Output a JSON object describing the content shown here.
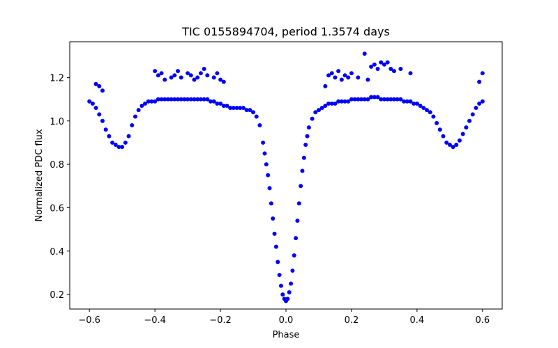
{
  "chart_data": {
    "type": "scatter",
    "title": "TIC 0155894704, period 1.3574 days",
    "xlabel": "Phase",
    "ylabel": "Normalized PDC flux",
    "xlim": [
      -0.66,
      0.66
    ],
    "ylim": [
      0.133,
      1.365
    ],
    "x_ticks": [
      -0.6,
      -0.4,
      -0.2,
      0.0,
      0.2,
      0.4,
      0.6
    ],
    "x_tick_labels": [
      "−0.6",
      "−0.4",
      "−0.2",
      "0.0",
      "0.2",
      "0.4",
      "0.6"
    ],
    "y_ticks": [
      0.2,
      0.4,
      0.6,
      0.8,
      1.0,
      1.2
    ],
    "y_tick_labels": [
      "0.2",
      "0.4",
      "0.6",
      "0.8",
      "1.0",
      "1.2"
    ],
    "grid": false,
    "marker_color": "#0000ff",
    "series": [
      {
        "x": [
          -0.6,
          -0.59,
          -0.58,
          -0.57,
          -0.56,
          -0.55,
          -0.54,
          -0.53,
          -0.52,
          -0.51,
          -0.5,
          -0.49,
          -0.48,
          -0.47,
          -0.46,
          -0.45,
          -0.44,
          -0.43,
          -0.42,
          -0.41,
          -0.4,
          -0.39,
          -0.38,
          -0.37,
          -0.36,
          -0.35,
          -0.34,
          -0.33,
          -0.32,
          -0.31,
          -0.3,
          -0.29,
          -0.28,
          -0.27,
          -0.26,
          -0.25,
          -0.24,
          -0.23,
          -0.22,
          -0.21,
          -0.2,
          -0.19,
          -0.18,
          -0.17,
          -0.16,
          -0.15,
          -0.14,
          -0.13,
          -0.12,
          -0.11,
          -0.1,
          -0.09,
          -0.08,
          -0.07,
          -0.065,
          -0.06,
          -0.055,
          -0.05,
          -0.045,
          -0.04,
          -0.035,
          -0.03,
          -0.025,
          -0.02,
          -0.015,
          -0.01,
          -0.005,
          0.0,
          0.005,
          0.01,
          0.015,
          0.02,
          0.025,
          0.03,
          0.035,
          0.04,
          0.045,
          0.05,
          0.055,
          0.06,
          0.065,
          0.07,
          0.08,
          0.09,
          0.1,
          0.11,
          0.12,
          0.13,
          0.14,
          0.15,
          0.16,
          0.17,
          0.18,
          0.19,
          0.2,
          0.21,
          0.22,
          0.23,
          0.24,
          0.25,
          0.26,
          0.27,
          0.28,
          0.29,
          0.3,
          0.31,
          0.32,
          0.33,
          0.34,
          0.35,
          0.36,
          0.37,
          0.38,
          0.39,
          0.4,
          0.41,
          0.42,
          0.43,
          0.44,
          0.45,
          0.46,
          0.47,
          0.48,
          0.49,
          0.5,
          0.51,
          0.52,
          0.53,
          0.54,
          0.55,
          0.56,
          0.57,
          0.58,
          0.59,
          0.6
        ],
        "y": [
          1.09,
          1.08,
          1.06,
          1.03,
          1.0,
          0.96,
          0.93,
          0.9,
          0.89,
          0.88,
          0.88,
          0.9,
          0.93,
          0.98,
          1.02,
          1.05,
          1.07,
          1.08,
          1.09,
          1.09,
          1.09,
          1.1,
          1.1,
          1.1,
          1.1,
          1.1,
          1.1,
          1.1,
          1.1,
          1.1,
          1.1,
          1.1,
          1.1,
          1.1,
          1.1,
          1.1,
          1.1,
          1.09,
          1.09,
          1.08,
          1.08,
          1.07,
          1.07,
          1.06,
          1.06,
          1.06,
          1.06,
          1.06,
          1.05,
          1.05,
          1.04,
          1.02,
          0.98,
          0.9,
          0.85,
          0.8,
          0.75,
          0.69,
          0.62,
          0.55,
          0.48,
          0.42,
          0.35,
          0.29,
          0.24,
          0.2,
          0.18,
          0.17,
          0.18,
          0.21,
          0.25,
          0.31,
          0.38,
          0.46,
          0.54,
          0.62,
          0.7,
          0.77,
          0.83,
          0.89,
          0.93,
          0.97,
          1.01,
          1.04,
          1.05,
          1.06,
          1.07,
          1.08,
          1.08,
          1.08,
          1.09,
          1.09,
          1.09,
          1.09,
          1.1,
          1.1,
          1.1,
          1.1,
          1.1,
          1.1,
          1.11,
          1.11,
          1.11,
          1.1,
          1.1,
          1.1,
          1.1,
          1.1,
          1.1,
          1.1,
          1.09,
          1.09,
          1.09,
          1.08,
          1.08,
          1.07,
          1.06,
          1.05,
          1.04,
          1.02,
          0.99,
          0.96,
          0.93,
          0.9,
          0.89,
          0.88,
          0.89,
          0.91,
          0.94,
          0.97,
          1.0,
          1.03,
          1.06,
          1.08,
          1.09
        ]
      },
      {
        "x": [
          -0.58,
          -0.57,
          -0.56,
          -0.4,
          -0.39,
          -0.38,
          -0.37,
          -0.35,
          -0.34,
          -0.33,
          -0.32,
          -0.3,
          -0.29,
          -0.28,
          -0.27,
          -0.26,
          -0.25,
          -0.24,
          -0.22,
          -0.21,
          -0.2,
          -0.19,
          0.12,
          0.13,
          0.14,
          0.15,
          0.16,
          0.17,
          0.18,
          0.19,
          0.2,
          0.22,
          0.24,
          0.25,
          0.26,
          0.27,
          0.28,
          0.29,
          0.3,
          0.31,
          0.32,
          0.33,
          0.35,
          0.38,
          0.6,
          0.59
        ],
        "y": [
          1.17,
          1.16,
          1.14,
          1.23,
          1.21,
          1.22,
          1.19,
          1.2,
          1.21,
          1.23,
          1.2,
          1.22,
          1.21,
          1.19,
          1.2,
          1.22,
          1.24,
          1.21,
          1.2,
          1.22,
          1.19,
          1.18,
          1.16,
          1.21,
          1.22,
          1.2,
          1.23,
          1.19,
          1.21,
          1.2,
          1.22,
          1.2,
          1.31,
          1.19,
          1.25,
          1.26,
          1.24,
          1.27,
          1.26,
          1.27,
          1.24,
          1.23,
          1.24,
          1.22,
          1.22,
          1.18
        ]
      }
    ]
  }
}
